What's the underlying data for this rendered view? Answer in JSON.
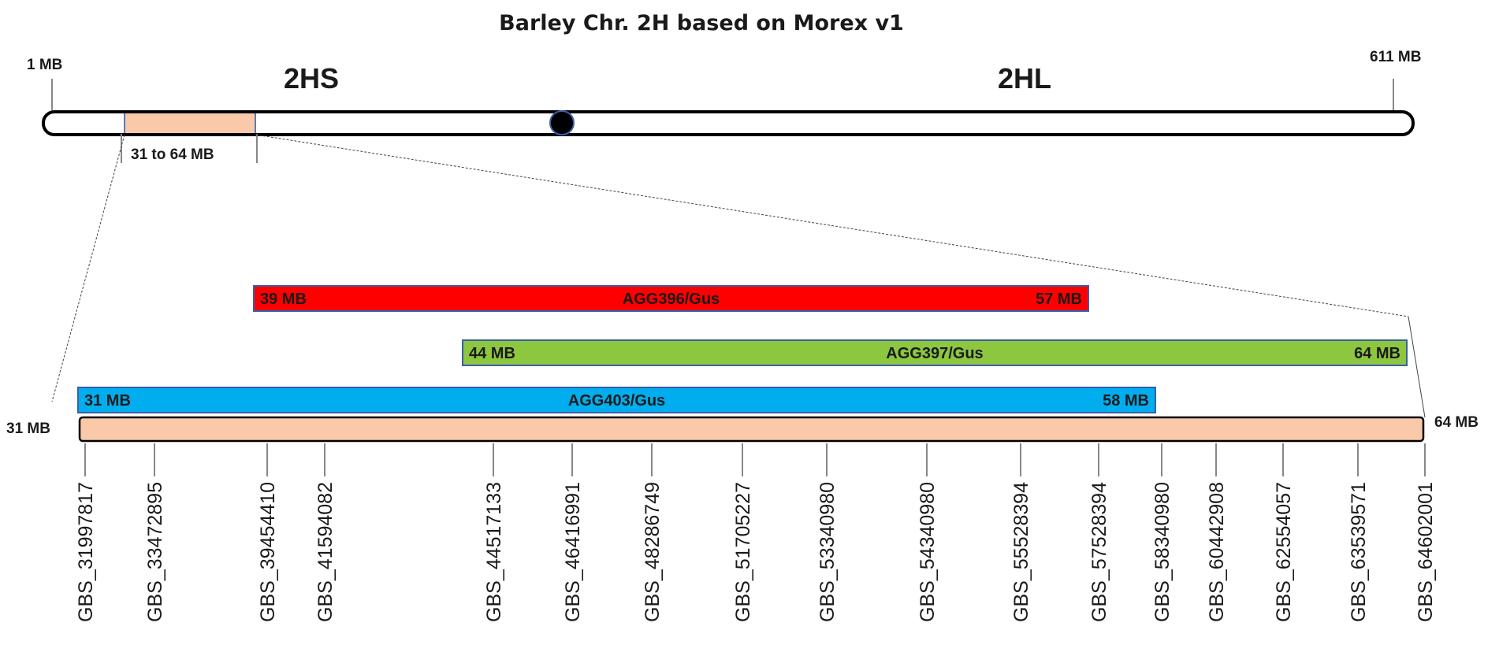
{
  "title": "Barley Chr. 2H based on Morex v1",
  "chromosome": {
    "start_label": "1 MB",
    "end_label": "611 MB",
    "start_mb": 1,
    "end_mb": 611,
    "short_arm": "2HS",
    "long_arm": "2HL",
    "centromere_mb": 191,
    "region": {
      "from_mb": 31,
      "to_mb": 64,
      "label": "31 to 64 MB",
      "color": "#f9c9a9"
    }
  },
  "zoom": {
    "start_label": "31 MB",
    "end_label": "64 MB",
    "color": "#f9c9a9"
  },
  "intervals": [
    {
      "name": "AGG396/Gus",
      "start_label": "39 MB",
      "end_label": "57 MB",
      "start_mb": 39,
      "end_mb": 57,
      "color": "#ff0000"
    },
    {
      "name": "AGG397/Gus",
      "start_label": "44 MB",
      "end_label": "64 MB",
      "start_mb": 44,
      "end_mb": 64,
      "color": "#8dc63f"
    },
    {
      "name": "AGG403/Gus",
      "start_label": "31 MB",
      "end_label": "58 MB",
      "start_mb": 31,
      "end_mb": 58,
      "color": "#00aeef"
    }
  ],
  "markers": [
    "GBS_31997817",
    "GBS_33472895",
    "GBS_39454410",
    "GBS_41594082",
    "GBS_44517133",
    "GBS_46416991",
    "GBS_48286749",
    "GBS_51705227",
    "GBS_53340980",
    "GBS_54340980",
    "GBS_55528394",
    "GBS_57528394",
    "GBS_58340980",
    "GBS_60442908",
    "GBS_62554057",
    "GBS_63539571",
    "GBS_64602001"
  ]
}
